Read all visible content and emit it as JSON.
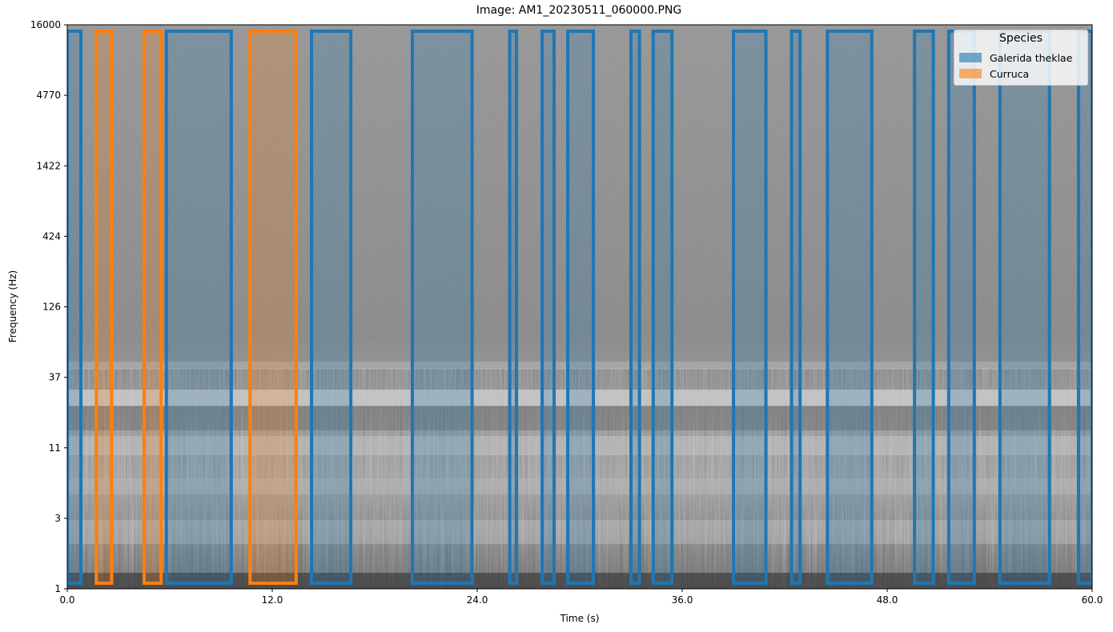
{
  "chart_data": {
    "type": "spectrogram",
    "title": "Image: AM1_20230511_060000.PNG",
    "xlabel": "Time (s)",
    "ylabel": "Frequency (Hz)",
    "xlim": [
      0,
      60
    ],
    "x_ticks": [
      "0.0",
      "12.0",
      "24.0",
      "36.0",
      "48.0",
      "60.0"
    ],
    "y_ticks": [
      "1",
      "3",
      "11",
      "37",
      "126",
      "424",
      "1422",
      "4770",
      "16000"
    ],
    "legend": {
      "title": "Species",
      "placement": "top-right",
      "entries": [
        {
          "label": "Galerida theklae",
          "color": "#1f77b4"
        },
        {
          "label": "Curruca",
          "color": "#ff7f0e"
        }
      ]
    },
    "detections": [
      {
        "species": "Galerida theklae",
        "start": 0.0,
        "end": 0.8
      },
      {
        "species": "Curruca",
        "start": 1.7,
        "end": 2.6
      },
      {
        "species": "Curruca",
        "start": 4.5,
        "end": 5.5
      },
      {
        "species": "Galerida theklae",
        "start": 5.8,
        "end": 9.6
      },
      {
        "species": "Curruca",
        "start": 10.7,
        "end": 13.4
      },
      {
        "species": "Galerida theklae",
        "start": 14.3,
        "end": 16.6
      },
      {
        "species": "Galerida theklae",
        "start": 20.2,
        "end": 23.7
      },
      {
        "species": "Galerida theklae",
        "start": 25.9,
        "end": 26.3
      },
      {
        "species": "Galerida theklae",
        "start": 27.8,
        "end": 28.5
      },
      {
        "species": "Galerida theklae",
        "start": 29.3,
        "end": 30.8
      },
      {
        "species": "Galerida theklae",
        "start": 33.0,
        "end": 33.5
      },
      {
        "species": "Galerida theklae",
        "start": 34.3,
        "end": 35.4
      },
      {
        "species": "Galerida theklae",
        "start": 39.0,
        "end": 40.9
      },
      {
        "species": "Galerida theklae",
        "start": 42.4,
        "end": 42.9
      },
      {
        "species": "Galerida theklae",
        "start": 44.5,
        "end": 47.1
      },
      {
        "species": "Galerida theklae",
        "start": 49.6,
        "end": 50.7
      },
      {
        "species": "Galerida theklae",
        "start": 51.6,
        "end": 53.1
      },
      {
        "species": "Galerida theklae",
        "start": 54.6,
        "end": 57.5
      },
      {
        "species": "Galerida theklae",
        "start": 59.2,
        "end": 60.0
      }
    ]
  }
}
